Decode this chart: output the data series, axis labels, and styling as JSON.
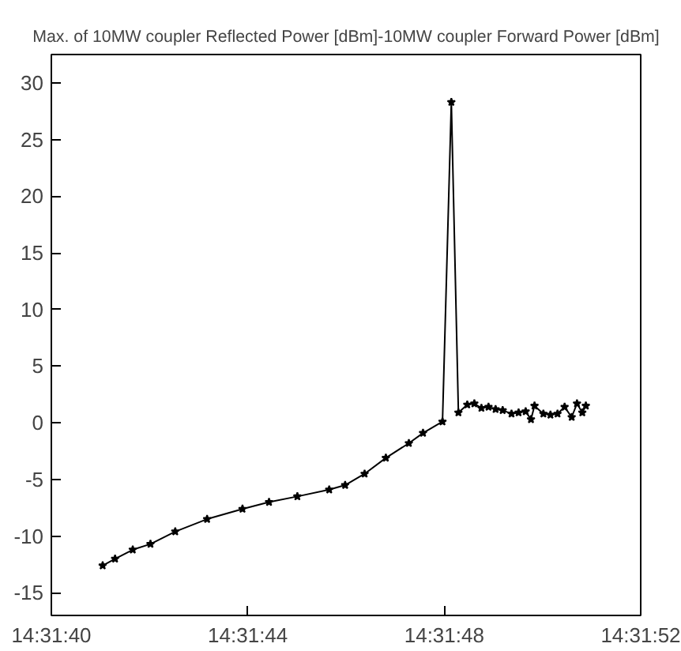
{
  "chart_data": {
    "type": "line",
    "title": "Max. of 10MW coupler Reflected Power [dBm]-10MW coupler Forward Power [dBm]",
    "x": [
      14.52807,
      14.52814,
      14.52824,
      14.52834,
      14.52848,
      14.52866,
      14.52886,
      14.52901,
      14.52917,
      14.52935,
      14.52944,
      14.52955,
      14.52967,
      14.5298,
      14.52988,
      14.52999,
      14.53004,
      14.53008,
      14.53013,
      14.53017,
      14.53021,
      14.53025,
      14.53029,
      14.53033,
      14.53038,
      14.53042,
      14.53046,
      14.53049,
      14.53051,
      14.53056,
      14.5306,
      14.53064,
      14.53068,
      14.53072,
      14.53075,
      14.53078,
      14.5308
    ],
    "series": [
      {
        "color": "#000000",
        "values": [
          -12.6,
          -12.0,
          -11.2,
          -10.7,
          -9.6,
          -8.5,
          -7.6,
          -7.0,
          -6.5,
          -5.9,
          -5.5,
          -4.5,
          -3.1,
          -1.8,
          -0.9,
          0.1,
          28.3,
          0.9,
          1.6,
          1.7,
          1.3,
          1.4,
          1.2,
          1.1,
          0.8,
          0.9,
          1.0,
          0.3,
          1.5,
          0.8,
          0.7,
          0.8,
          1.4,
          0.5,
          1.7,
          0.9,
          1.5
        ]
      }
    ],
    "xlim": [
      14.52778,
      14.53111
    ],
    "xticks": [
      {
        "value": 14.52778,
        "label": "14:31:40"
      },
      {
        "value": 14.52889,
        "label": "14:31:44"
      },
      {
        "value": 14.53,
        "label": "14:31:48"
      },
      {
        "value": 14.53111,
        "label": "14:31:52"
      }
    ],
    "ylim": [
      -17,
      32.5
    ],
    "yticks": [
      -15,
      -10,
      -5,
      0,
      5,
      10,
      15,
      20,
      25,
      30
    ],
    "marker": "star",
    "line_style": "solid"
  }
}
